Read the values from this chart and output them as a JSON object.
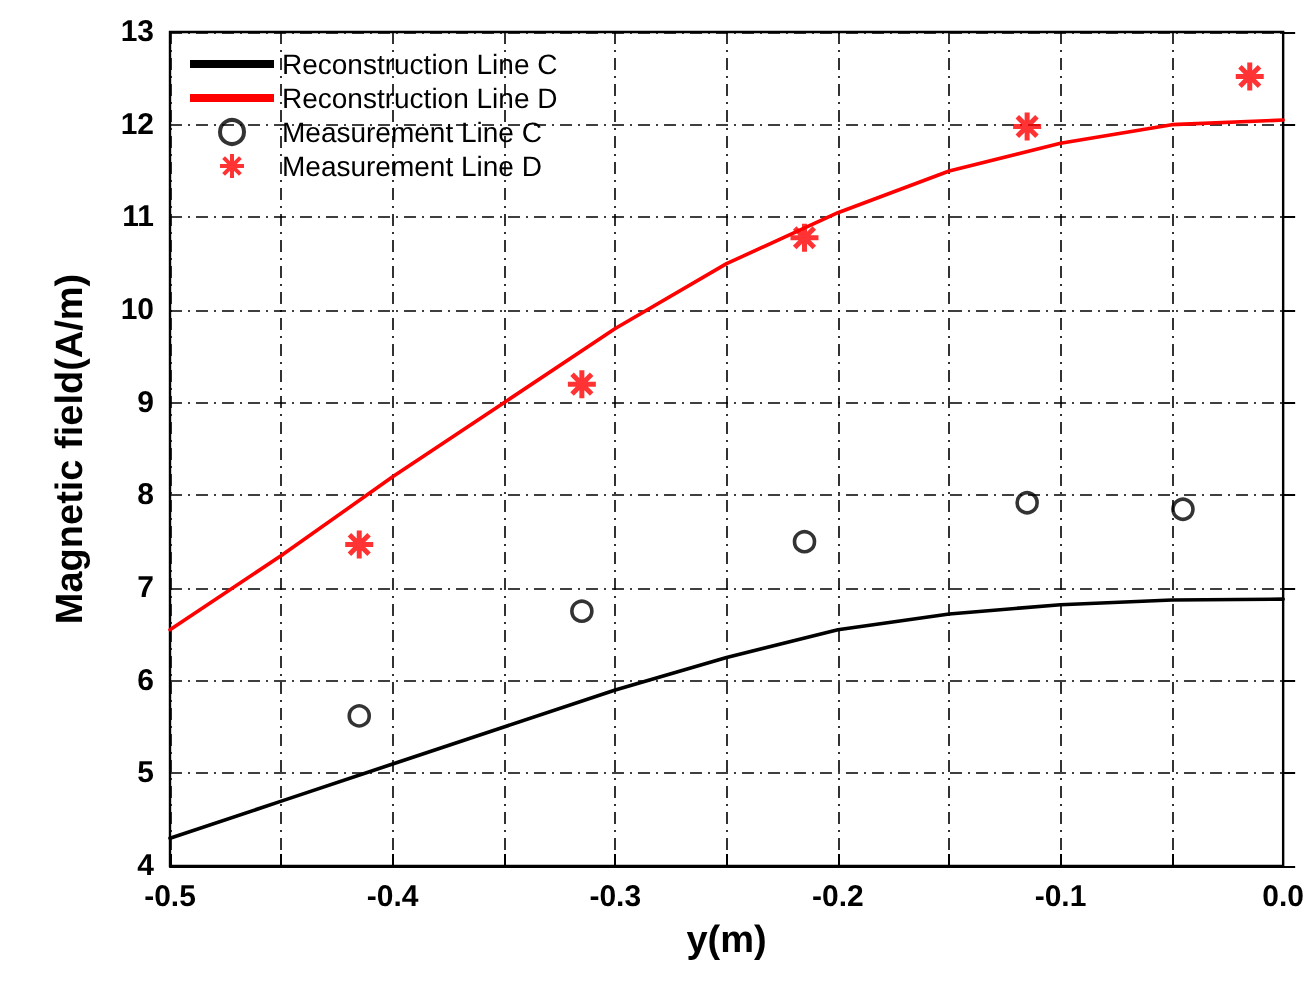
{
  "chart_data": {
    "type": "line",
    "xlabel": "y(m)",
    "ylabel": "Magnetic field(A/m)",
    "xlim": [
      -0.5,
      0.0
    ],
    "ylim": [
      4,
      13
    ],
    "xticks": [
      -0.5,
      {
        "value": -0.45,
        "label": null
      },
      -0.4,
      {
        "value": -0.35,
        "label": null
      },
      -0.3,
      {
        "value": -0.25,
        "label": null
      },
      -0.2,
      {
        "value": -0.15,
        "label": null
      },
      -0.1,
      {
        "value": -0.05,
        "label": null
      },
      {
        "value": 0.0,
        "label": "0.0"
      }
    ],
    "yticks": [
      4,
      5,
      6,
      7,
      8,
      9,
      10,
      11,
      12,
      13
    ],
    "grid": true,
    "legend": "top left",
    "series": [
      {
        "name": "Reconstruction Line C",
        "color": "#000000",
        "marker": "none",
        "line_style": "solid",
        "x": [
          -0.5,
          -0.45,
          -0.4,
          -0.35,
          -0.3,
          -0.25,
          -0.2,
          -0.15,
          -0.1,
          -0.05,
          0.0
        ],
        "values": [
          4.3,
          4.7,
          5.1,
          5.5,
          5.9,
          6.25,
          6.55,
          6.72,
          6.82,
          6.87,
          6.88
        ]
      },
      {
        "name": "Reconstruction Line D",
        "color": "#ff0000",
        "marker": "none",
        "line_style": "solid",
        "x": [
          -0.5,
          -0.45,
          -0.4,
          -0.35,
          -0.3,
          -0.25,
          -0.2,
          -0.15,
          -0.1,
          -0.05,
          0.0
        ],
        "values": [
          6.55,
          7.35,
          8.2,
          9.0,
          9.8,
          10.5,
          11.05,
          11.5,
          11.8,
          12.0,
          12.05
        ]
      },
      {
        "name": "Measurement Line C",
        "type": "scatter",
        "color": "#000000",
        "marker": "circle",
        "x": [
          -0.415,
          -0.315,
          -0.215,
          -0.115,
          -0.045
        ],
        "values": [
          5.62,
          6.75,
          7.5,
          7.92,
          7.85
        ]
      },
      {
        "name": "Measurement Line D",
        "type": "scatter",
        "color": "#ff0000",
        "marker": "cross",
        "x": [
          -0.415,
          -0.315,
          -0.215,
          -0.115,
          -0.015
        ],
        "values": [
          7.47,
          9.2,
          10.78,
          11.98,
          12.52
        ]
      }
    ]
  }
}
